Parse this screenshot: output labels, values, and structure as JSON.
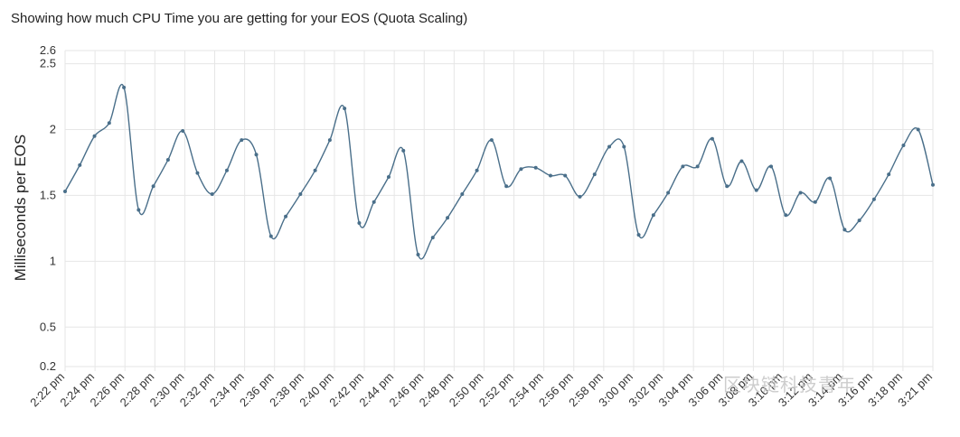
{
  "chart_data": {
    "type": "line",
    "title": "Showing how much CPU Time you are getting for your EOS (Quota Scaling)",
    "xlabel": "",
    "ylabel": "Milliseconds per EOS",
    "y_ticks": [
      "0.2",
      "0.5",
      "1",
      "1.5",
      "2",
      "2.5",
      "2.6"
    ],
    "ylim": [
      0.2,
      2.6
    ],
    "grid": true,
    "x_tick_labels": [
      "2:22 pm",
      "2:24 pm",
      "2:26 pm",
      "2:28 pm",
      "2:30 pm",
      "2:32 pm",
      "2:34 pm",
      "2:36 pm",
      "2:38 pm",
      "2:40 pm",
      "2:42 pm",
      "2:44 pm",
      "2:46 pm",
      "2:48 pm",
      "2:50 pm",
      "2:52 pm",
      "2:54 pm",
      "2:56 pm",
      "2:58 pm",
      "3:00 pm",
      "3:02 pm",
      "3:04 pm",
      "3:06 pm",
      "3:08 pm",
      "3:10 pm",
      "3:12 pm",
      "3:14 pm",
      "3:16 pm",
      "3:18 pm",
      "3:21 pm"
    ],
    "series": [
      {
        "color": "#4a6f8a",
        "values": [
          1.53,
          1.73,
          1.95,
          2.05,
          2.32,
          1.39,
          1.57,
          1.77,
          1.99,
          1.67,
          1.51,
          1.69,
          1.92,
          1.81,
          1.19,
          1.34,
          1.51,
          1.69,
          1.92,
          2.16,
          1.29,
          1.45,
          1.64,
          1.84,
          1.05,
          1.18,
          1.33,
          1.51,
          1.69,
          1.92,
          1.57,
          1.7,
          1.71,
          1.65,
          1.65,
          1.49,
          1.66,
          1.87,
          1.87,
          1.2,
          1.35,
          1.52,
          1.72,
          1.72,
          1.93,
          1.57,
          1.76,
          1.54,
          1.72,
          1.35,
          1.52,
          1.45,
          1.63,
          1.24,
          1.31,
          1.47,
          1.66,
          1.88,
          2.0,
          1.58
        ]
      }
    ]
  },
  "watermark": "区块链科技青年"
}
